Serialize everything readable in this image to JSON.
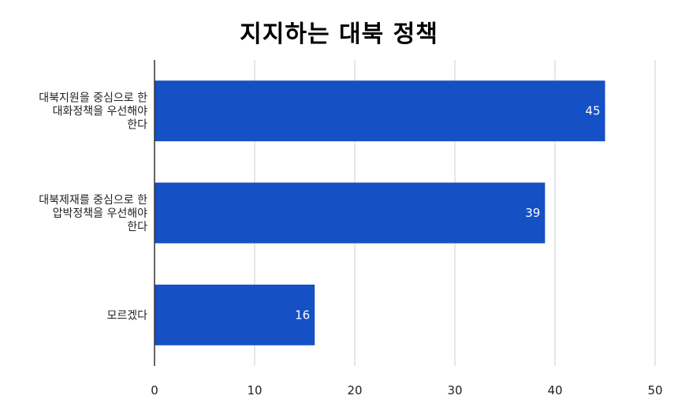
{
  "chart_data": {
    "type": "bar",
    "orientation": "horizontal",
    "title": "지지하는 대북 정책",
    "xlabel": "",
    "ylabel": "",
    "categories": [
      [
        "대북지원을 중심으로 한",
        "대화정책을 우선해야",
        "한다"
      ],
      [
        "대북제재를 중심으로 한",
        "압박정책을 우선해야",
        "한다"
      ],
      [
        "모르겠다"
      ]
    ],
    "values": [
      45,
      39,
      16
    ],
    "xlim": [
      0,
      50
    ],
    "xticks": [
      "0",
      "10",
      "20",
      "30",
      "40",
      "50"
    ],
    "grid": true,
    "legend": "none",
    "colors": {
      "bar": "#1550c4",
      "grid": "#cfcfcf",
      "axis": "#333333"
    }
  }
}
